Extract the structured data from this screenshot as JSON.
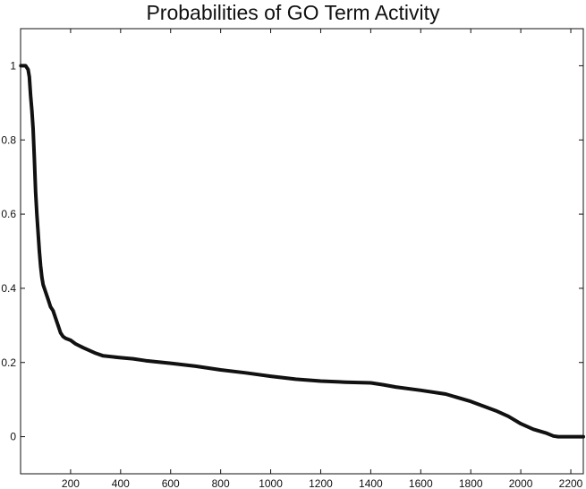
{
  "chart_data": {
    "type": "line",
    "title": "Probabilities of GO Term Activity",
    "xlabel": "",
    "ylabel": "",
    "xlim": [
      0,
      2250
    ],
    "ylim": [
      -0.1,
      1.1
    ],
    "xticks": [
      200,
      400,
      600,
      800,
      1000,
      1200,
      1400,
      1600,
      1800,
      2000,
      2200
    ],
    "yticks": [
      0,
      0.2,
      0.4,
      0.6,
      0.8,
      1
    ],
    "ytick_labels": [
      "0",
      "0.2",
      "0.4",
      "0.6",
      "0.8",
      "1"
    ],
    "grid": false,
    "legend": "none",
    "line_color": "#111111",
    "series": [
      {
        "x": [
          1,
          20,
          30,
          35,
          40,
          45,
          50,
          55,
          60,
          65,
          70,
          75,
          80,
          85,
          90,
          100,
          110,
          120,
          130,
          140,
          150,
          160,
          170,
          180,
          200,
          220,
          250,
          300,
          330,
          400,
          450,
          500,
          600,
          700,
          800,
          900,
          1000,
          1100,
          1200,
          1300,
          1400,
          1450,
          1500,
          1600,
          1700,
          1800,
          1900,
          1950,
          2000,
          2050,
          2100,
          2130,
          2150,
          2200,
          2250
        ],
        "y": [
          1.0,
          1.0,
          0.99,
          0.97,
          0.92,
          0.88,
          0.83,
          0.75,
          0.66,
          0.6,
          0.55,
          0.5,
          0.46,
          0.43,
          0.41,
          0.39,
          0.37,
          0.35,
          0.34,
          0.32,
          0.3,
          0.28,
          0.27,
          0.265,
          0.26,
          0.25,
          0.24,
          0.225,
          0.218,
          0.213,
          0.21,
          0.205,
          0.198,
          0.19,
          0.18,
          0.172,
          0.163,
          0.155,
          0.15,
          0.147,
          0.145,
          0.14,
          0.134,
          0.125,
          0.115,
          0.095,
          0.07,
          0.055,
          0.035,
          0.02,
          0.01,
          0.002,
          0.0,
          0.0,
          0.0
        ]
      }
    ]
  }
}
